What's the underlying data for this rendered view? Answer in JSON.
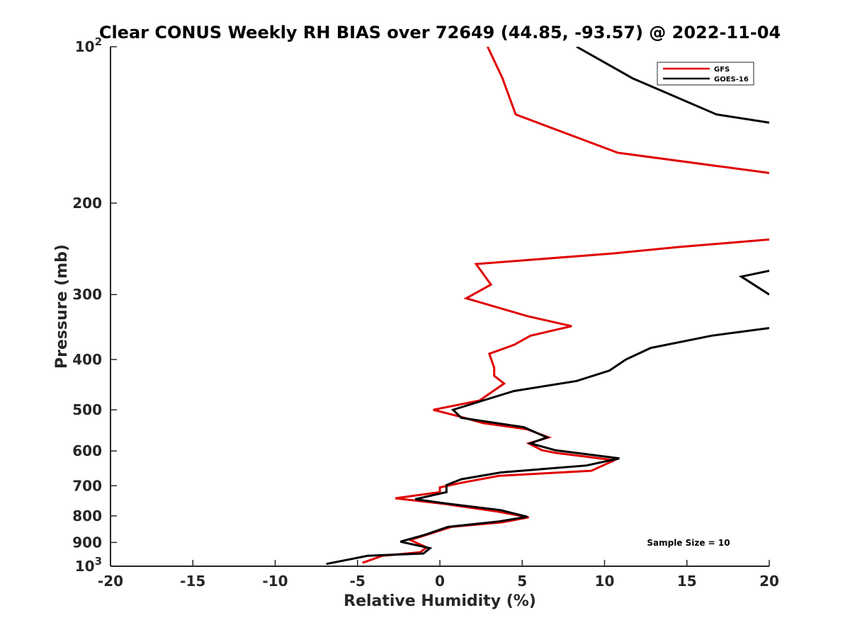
{
  "chart_data": {
    "type": "line",
    "title": "Clear CONUS Weekly RH BIAS over 72649 (44.85, -93.57) @ 2022-11-04",
    "xlabel": "Relative Humidity (%)",
    "ylabel": "Pressure (mb)",
    "xlim": [
      -20,
      20
    ],
    "ylim": [
      100,
      1000
    ],
    "y_scale": "log",
    "y_reversed": true,
    "x_ticks": [
      "-20",
      "-15",
      "-10",
      "-5",
      "0",
      "5",
      "10",
      "15",
      "20"
    ],
    "y_ticks": [
      {
        "value": 100,
        "base": "10",
        "exp": "2"
      },
      {
        "value": 200,
        "label": "200"
      },
      {
        "value": 300,
        "label": "300"
      },
      {
        "value": 400,
        "label": "400"
      },
      {
        "value": 500,
        "label": "500"
      },
      {
        "value": 600,
        "label": "600"
      },
      {
        "value": 700,
        "label": "700"
      },
      {
        "value": 800,
        "label": "800"
      },
      {
        "value": 900,
        "label": "900"
      },
      {
        "value": 1000,
        "base": "10",
        "exp": "3"
      }
    ],
    "grid": false,
    "legend_position": "top-right",
    "annotation": "Sample Size = 10",
    "series": [
      {
        "name": "GFS",
        "color": "#e00000",
        "points": [
          [
            2.9,
            100
          ],
          [
            3.8,
            115
          ],
          [
            4.6,
            135
          ],
          [
            10.8,
            160
          ],
          [
            20,
            175
          ],
          [
            null,
            null
          ],
          [
            20,
            235
          ],
          [
            14.5,
            243
          ],
          [
            10.5,
            250
          ],
          [
            2.2,
            262
          ],
          [
            3.1,
            287
          ],
          [
            1.6,
            305
          ],
          [
            5.3,
            330
          ],
          [
            8,
            345
          ],
          [
            5.5,
            360
          ],
          [
            4.5,
            375
          ],
          [
            3,
            390
          ],
          [
            3.3,
            415
          ],
          [
            3.3,
            430
          ],
          [
            3.9,
            445
          ],
          [
            2.4,
            480
          ],
          [
            -0.4,
            500
          ],
          [
            1.2,
            515
          ],
          [
            2.6,
            530
          ],
          [
            5.3,
            545
          ],
          [
            6.6,
            565
          ],
          [
            5.4,
            580
          ],
          [
            6.2,
            598
          ],
          [
            7,
            605
          ],
          [
            10.6,
            625
          ],
          [
            9.2,
            655
          ],
          [
            3.6,
            670
          ],
          [
            1.4,
            690
          ],
          [
            0,
            705
          ],
          [
            0,
            720
          ],
          [
            -2.7,
            740
          ],
          [
            0.2,
            758
          ],
          [
            3.5,
            785
          ],
          [
            5.4,
            805
          ],
          [
            3.8,
            823
          ],
          [
            0.7,
            840
          ],
          [
            -0.8,
            870
          ],
          [
            -1.8,
            890
          ],
          [
            -0.8,
            920
          ],
          [
            -1.2,
            940
          ],
          [
            -3.5,
            955
          ],
          [
            -4.7,
            985
          ]
        ]
      },
      {
        "name": "GOES-16",
        "color": "#000000",
        "points": [
          [
            8.3,
            100
          ],
          [
            11.7,
            115
          ],
          [
            16.8,
            135
          ],
          [
            20,
            140
          ],
          [
            null,
            null
          ],
          [
            20,
            270
          ],
          [
            18.3,
            277
          ],
          [
            20,
            300
          ],
          [
            null,
            null
          ],
          [
            20,
            348
          ],
          [
            16.5,
            360
          ],
          [
            12.8,
            380
          ],
          [
            11.3,
            400
          ],
          [
            10.3,
            420
          ],
          [
            8.3,
            440
          ],
          [
            4.5,
            460
          ],
          [
            2.6,
            480
          ],
          [
            0.8,
            500
          ],
          [
            1.3,
            518
          ],
          [
            5.1,
            540
          ],
          [
            6.5,
            565
          ],
          [
            5.5,
            580
          ],
          [
            7,
            598
          ],
          [
            10.9,
            620
          ],
          [
            8.9,
            640
          ],
          [
            3.7,
            660
          ],
          [
            1.3,
            680
          ],
          [
            0.4,
            698
          ],
          [
            0.4,
            720
          ],
          [
            -1.5,
            743
          ],
          [
            0.5,
            758
          ],
          [
            3.7,
            780
          ],
          [
            5.3,
            803
          ],
          [
            3.6,
            820
          ],
          [
            0.5,
            840
          ],
          [
            -0.9,
            870
          ],
          [
            -2.4,
            897
          ],
          [
            -0.6,
            923
          ],
          [
            -1,
            945
          ],
          [
            -4.4,
            955
          ],
          [
            -6.9,
            990
          ]
        ]
      }
    ]
  }
}
